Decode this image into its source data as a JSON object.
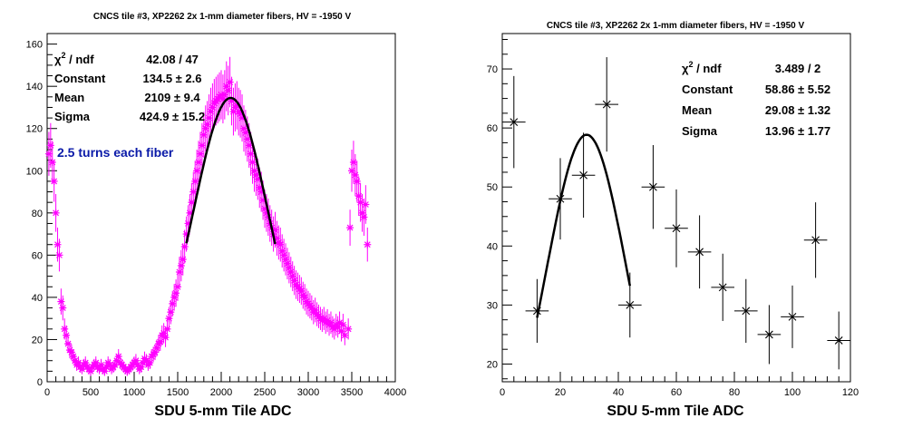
{
  "chart_data": [
    {
      "type": "scatter",
      "title": "CNCS tile #3, XP2262 2x 1-mm diameter fibers, HV = -1950 V",
      "xlabel": "SDU 5-mm Tile ADC",
      "ylabel": "",
      "xlim": [
        0,
        4000
      ],
      "ylim": [
        0,
        165
      ],
      "x_ticks": [
        "0",
        "500",
        "1000",
        "1500",
        "2000",
        "2500",
        "3000",
        "3500",
        "4000"
      ],
      "y_ticks": [
        "0",
        "20",
        "40",
        "60",
        "80",
        "100",
        "120",
        "140",
        "160"
      ],
      "marker_color": "#ff00ff",
      "fit_color": "#000000",
      "stats": [
        {
          "label_pre": "χ",
          "label_sup": "2",
          "label_post": " / ndf",
          "value": "42.08 / 47"
        },
        {
          "label_pre": "Constant",
          "value": "134.5 ± 2.6"
        },
        {
          "label_pre": "Mean",
          "value": "2109 ± 9.4"
        },
        {
          "label_pre": "Sigma",
          "value": "424.9 ± 15.2"
        }
      ],
      "annotation": "2.5 turns each fiber",
      "fit": {
        "constant": 134.5,
        "mean": 2109,
        "sigma": 424.9,
        "range": [
          1600,
          2620
        ]
      },
      "points_x": [
        20,
        40,
        60,
        80,
        100,
        120,
        140,
        160,
        180,
        200,
        220,
        240,
        260,
        280,
        300,
        320,
        340,
        360,
        380,
        400,
        420,
        440,
        460,
        480,
        500,
        520,
        540,
        560,
        580,
        600,
        620,
        640,
        660,
        680,
        700,
        720,
        740,
        760,
        780,
        800,
        820,
        840,
        860,
        880,
        900,
        920,
        940,
        960,
        980,
        1000,
        1020,
        1040,
        1060,
        1080,
        1100,
        1120,
        1140,
        1160,
        1180,
        1200,
        1220,
        1240,
        1260,
        1280,
        1300,
        1320,
        1340,
        1360,
        1380,
        1400,
        1420,
        1440,
        1460,
        1480,
        1500,
        1520,
        1540,
        1560,
        1580,
        1600,
        1620,
        1640,
        1660,
        1680,
        1700,
        1720,
        1740,
        1760,
        1780,
        1800,
        1820,
        1840,
        1860,
        1880,
        1900,
        1920,
        1940,
        1960,
        1980,
        2000,
        2020,
        2040,
        2060,
        2080,
        2100,
        2120,
        2140,
        2160,
        2180,
        2200,
        2220,
        2240,
        2260,
        2280,
        2300,
        2320,
        2340,
        2360,
        2380,
        2400,
        2420,
        2440,
        2460,
        2480,
        2500,
        2520,
        2540,
        2560,
        2580,
        2600,
        2620,
        2640,
        2660,
        2680,
        2700,
        2720,
        2740,
        2760,
        2780,
        2800,
        2820,
        2840,
        2860,
        2880,
        2900,
        2920,
        2940,
        2960,
        2980,
        3000,
        3020,
        3040,
        3060,
        3080,
        3100,
        3120,
        3140,
        3160,
        3180,
        3200,
        3220,
        3240,
        3260,
        3280,
        3300,
        3320,
        3340,
        3360,
        3380,
        3400,
        3420,
        3460,
        3480,
        3500,
        3520,
        3540,
        3560,
        3580,
        3600,
        3620,
        3640,
        3660,
        3680
      ],
      "points_y": [
        108,
        112,
        104,
        95,
        80,
        65,
        60,
        38,
        35,
        25,
        22,
        18,
        15,
        14,
        12,
        10,
        8,
        9,
        7,
        6,
        8,
        9,
        7,
        6,
        5,
        7,
        8,
        9,
        7,
        6,
        8,
        6,
        5,
        7,
        9,
        8,
        6,
        7,
        8,
        10,
        12,
        9,
        8,
        7,
        6,
        5,
        6,
        7,
        8,
        9,
        10,
        8,
        6,
        7,
        9,
        11,
        10,
        8,
        9,
        12,
        13,
        14,
        16,
        18,
        19,
        22,
        23,
        21,
        25,
        30,
        33,
        37,
        40,
        42,
        45,
        52,
        55,
        58,
        64,
        70,
        75,
        80,
        85,
        90,
        95,
        100,
        104,
        108,
        112,
        117,
        120,
        122,
        125,
        128,
        130,
        132,
        133,
        134,
        135,
        136,
        134,
        136,
        140,
        138,
        142,
        133,
        128,
        130,
        131,
        128,
        127,
        125,
        120,
        118,
        115,
        112,
        108,
        104,
        100,
        98,
        96,
        92,
        90,
        86,
        82,
        80,
        78,
        75,
        73,
        70,
        72,
        68,
        66,
        65,
        62,
        60,
        58,
        56,
        54,
        52,
        50,
        48,
        46,
        45,
        44,
        43,
        41,
        40,
        38,
        37,
        36,
        35,
        33,
        34,
        32,
        31,
        30,
        29,
        30,
        28,
        29,
        27,
        28,
        26,
        25,
        27,
        26,
        28,
        24,
        27,
        22,
        25,
        73,
        100,
        104,
        98,
        95,
        88,
        85,
        80,
        78,
        84,
        65
      ]
    },
    {
      "type": "scatter",
      "title": "CNCS tile #3, XP2262 2x 1-mm diameter fibers, HV = -1950 V",
      "xlabel": "SDU 5-mm Tile ADC",
      "ylabel": "",
      "xlim": [
        0,
        120
      ],
      "ylim": [
        17,
        76
      ],
      "x_ticks": [
        "0",
        "20",
        "40",
        "60",
        "80",
        "100",
        "120"
      ],
      "y_ticks": [
        "20",
        "30",
        "40",
        "50",
        "60",
        "70"
      ],
      "marker_color": "#000000",
      "fit_color": "#000000",
      "stats": [
        {
          "label_pre": "χ",
          "label_sup": "2",
          "label_post": " / ndf",
          "value": "3.489 / 2"
        },
        {
          "label_pre": "Constant",
          "value": "58.86 ± 5.52"
        },
        {
          "label_pre": "Mean",
          "value": "29.08 ± 1.32"
        },
        {
          "label_pre": "Sigma",
          "value": "13.96 ± 1.77"
        }
      ],
      "fit": {
        "constant": 58.86,
        "mean": 29.08,
        "sigma": 13.96,
        "range": [
          12,
          44
        ]
      },
      "points": [
        {
          "x": 4,
          "y": 61,
          "yerr": 7.8
        },
        {
          "x": 12,
          "y": 29,
          "yerr": 5.4
        },
        {
          "x": 20,
          "y": 48,
          "yerr": 6.9
        },
        {
          "x": 28,
          "y": 52,
          "yerr": 7.2
        },
        {
          "x": 36,
          "y": 64,
          "yerr": 8.0
        },
        {
          "x": 44,
          "y": 30,
          "yerr": 5.5
        },
        {
          "x": 52,
          "y": 50,
          "yerr": 7.1
        },
        {
          "x": 60,
          "y": 43,
          "yerr": 6.6
        },
        {
          "x": 68,
          "y": 39,
          "yerr": 6.2
        },
        {
          "x": 76,
          "y": 33,
          "yerr": 5.7
        },
        {
          "x": 84,
          "y": 29,
          "yerr": 5.4
        },
        {
          "x": 92,
          "y": 25,
          "yerr": 5.0
        },
        {
          "x": 100,
          "y": 28,
          "yerr": 5.3
        },
        {
          "x": 108,
          "y": 41,
          "yerr": 6.4
        },
        {
          "x": 116,
          "y": 24,
          "yerr": 4.9
        }
      ],
      "xerr": 4
    }
  ]
}
